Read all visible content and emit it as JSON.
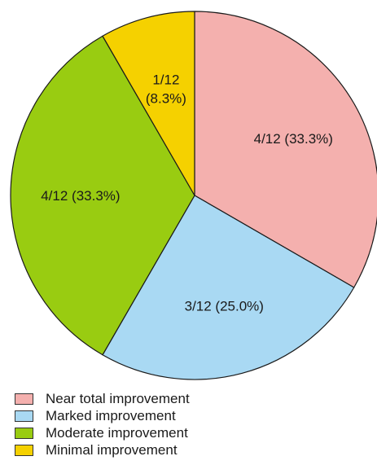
{
  "chart_data": {
    "type": "pie",
    "slices": [
      {
        "name": "Near total improvement",
        "value": 4,
        "label": "4/12 (33.3%)",
        "color": "#f4b0ae"
      },
      {
        "name": "Marked improvement",
        "value": 3,
        "label": "3/12 (25.0%)",
        "color": "#a9d9f3"
      },
      {
        "name": "Moderate improvement",
        "value": 4,
        "label": "4/12 (33.3%)",
        "color": "#99cc11"
      },
      {
        "name": "Minimal improvement",
        "value": 1,
        "label": "1/12 (8.3%)",
        "label_lines": [
          "1/12",
          "(8.3%)"
        ],
        "color": "#f5d100"
      }
    ],
    "start": "12 o'clock",
    "direction": "clockwise",
    "legend_position": "bottom-left"
  }
}
